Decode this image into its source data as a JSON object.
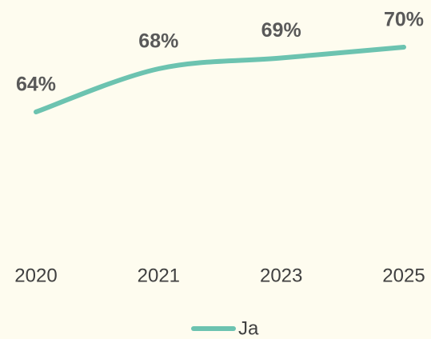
{
  "chart_data": {
    "type": "line",
    "categories": [
      "2020",
      "2021",
      "2023",
      "2025"
    ],
    "series": [
      {
        "name": "Ja",
        "color": "#6cc3b0",
        "values": [
          64,
          68,
          69,
          70
        ],
        "value_labels": [
          "64%",
          "68%",
          "69%",
          "70%"
        ]
      }
    ],
    "ylim": [
      50,
      72
    ],
    "legend": "bottom"
  }
}
